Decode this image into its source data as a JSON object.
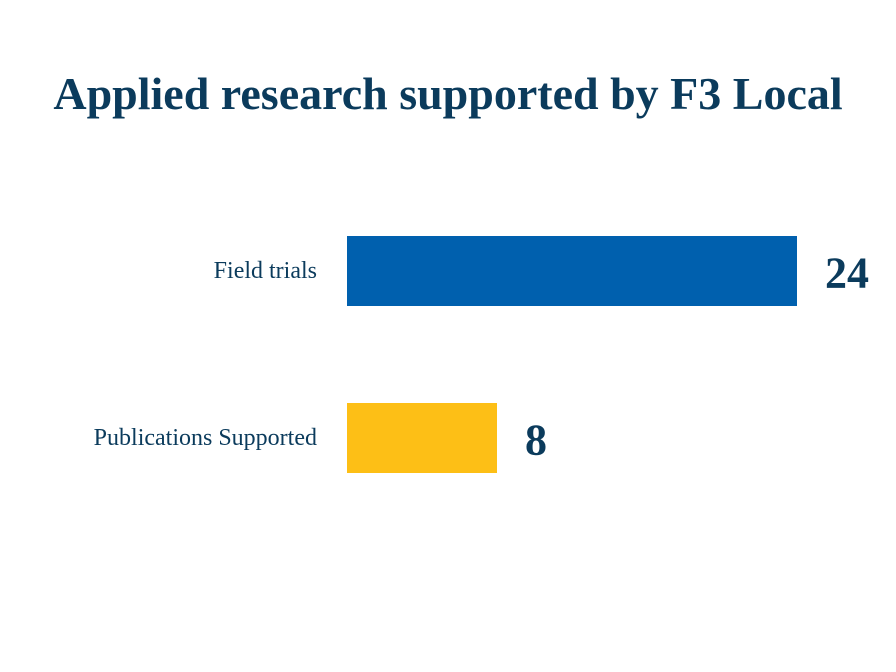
{
  "colors": {
    "text": "#0b3b5c",
    "bar_blue": "#0060ae",
    "bar_gold": "#fdbf16"
  },
  "chart_data": {
    "type": "bar",
    "orientation": "horizontal",
    "title": "Applied research supported by F3 Local",
    "categories": [
      "Field trials",
      "Publications Supported"
    ],
    "values": [
      24,
      8
    ],
    "data_labels": [
      "24",
      "8"
    ],
    "bar_colors": [
      "#0060ae",
      "#fdbf16"
    ],
    "xlim": [
      0,
      24
    ],
    "grid": false,
    "legend": "none",
    "axes_visible": false
  }
}
